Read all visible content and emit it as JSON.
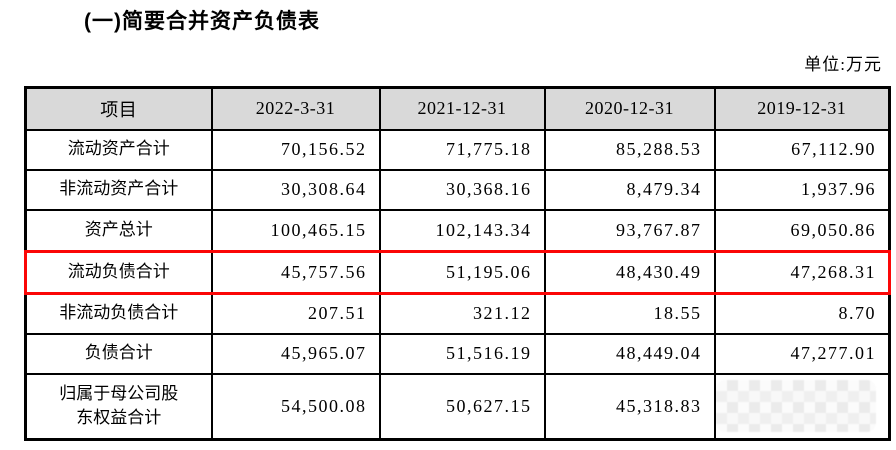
{
  "page": {
    "title": "(一)简要合并资产负债表",
    "unit_label": "单位:万元"
  },
  "table": {
    "highlight_color": "#fb0606",
    "header_bg": "#d9d9d9",
    "columns": [
      "项目",
      "2022-3-31",
      "2021-12-31",
      "2020-12-31",
      "2019-12-31"
    ],
    "rows": [
      {
        "label": "流动资产合计",
        "values": [
          "70,156.52",
          "71,775.18",
          "85,288.53",
          "67,112.90"
        ],
        "highlighted": false
      },
      {
        "label": "非流动资产合计",
        "values": [
          "30,308.64",
          "30,368.16",
          "8,479.34",
          "1,937.96"
        ],
        "highlighted": false
      },
      {
        "label": "资产总计",
        "values": [
          "100,465.15",
          "102,143.34",
          "93,767.87",
          "69,050.86"
        ],
        "highlighted": false
      },
      {
        "label": "流动负债合计",
        "values": [
          "45,757.56",
          "51,195.06",
          "48,430.49",
          "47,268.31"
        ],
        "highlighted": true
      },
      {
        "label": "非流动负债合计",
        "values": [
          "207.51",
          "321.12",
          "18.55",
          "8.70"
        ],
        "highlighted": false
      },
      {
        "label": "负债合计",
        "values": [
          "45,965.07",
          "51,516.19",
          "48,449.04",
          "47,277.01"
        ],
        "highlighted": false
      },
      {
        "label": "归属于母公司股东权益合计",
        "values": [
          "54,500.08",
          "50,627.15",
          "45,318.83",
          null
        ],
        "highlighted": false,
        "redacted_last_cell": true
      }
    ]
  }
}
